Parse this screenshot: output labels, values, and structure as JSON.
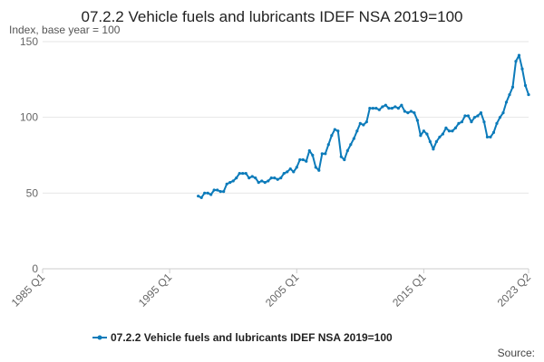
{
  "chart_data": {
    "type": "line",
    "title": "07.2.2 Vehicle fuels and lubricants IDEF NSA 2019=100",
    "subtitle": "Index, base year = 100",
    "ylim": [
      0,
      150
    ],
    "y_ticks": [
      0,
      50,
      100,
      150
    ],
    "x_range": [
      1985.0,
      2023.25
    ],
    "x_tick_labels": [
      "1985 Q1",
      "1995 Q1",
      "2005 Q1",
      "2015 Q1",
      "2023 Q2"
    ],
    "x_tick_values": [
      1985.0,
      1995.0,
      2005.0,
      2015.0,
      2023.25
    ],
    "legend": "top-bottom-center",
    "source_label": "Source:",
    "colors": {
      "series": "#0c7bba",
      "grid": "#e6e6e6",
      "axis": "#cccccc"
    },
    "series": [
      {
        "name": "07.2.2 Vehicle fuels and lubricants IDEF NSA 2019=100",
        "points": [
          [
            1997.25,
            48
          ],
          [
            1997.5,
            47
          ],
          [
            1997.75,
            50
          ],
          [
            1998.0,
            50
          ],
          [
            1998.25,
            49
          ],
          [
            1998.5,
            52
          ],
          [
            1998.75,
            52
          ],
          [
            1999.0,
            51
          ],
          [
            1999.25,
            51
          ],
          [
            1999.5,
            56
          ],
          [
            1999.75,
            57
          ],
          [
            2000.0,
            58
          ],
          [
            2000.25,
            60
          ],
          [
            2000.5,
            63
          ],
          [
            2000.75,
            63
          ],
          [
            2001.0,
            63
          ],
          [
            2001.25,
            60
          ],
          [
            2001.5,
            61
          ],
          [
            2001.75,
            60
          ],
          [
            2002.0,
            57
          ],
          [
            2002.25,
            58
          ],
          [
            2002.5,
            57
          ],
          [
            2002.75,
            58
          ],
          [
            2003.0,
            60
          ],
          [
            2003.25,
            60
          ],
          [
            2003.5,
            59
          ],
          [
            2003.75,
            60
          ],
          [
            2004.0,
            63
          ],
          [
            2004.25,
            64
          ],
          [
            2004.5,
            66
          ],
          [
            2004.75,
            64
          ],
          [
            2005.0,
            67
          ],
          [
            2005.25,
            72
          ],
          [
            2005.5,
            72
          ],
          [
            2005.75,
            71
          ],
          [
            2006.0,
            78
          ],
          [
            2006.25,
            75
          ],
          [
            2006.5,
            67
          ],
          [
            2006.75,
            65
          ],
          [
            2007.0,
            76
          ],
          [
            2007.25,
            76
          ],
          [
            2007.5,
            82
          ],
          [
            2007.75,
            88
          ],
          [
            2008.0,
            92
          ],
          [
            2008.25,
            91
          ],
          [
            2008.5,
            74
          ],
          [
            2008.75,
            72
          ],
          [
            2009.0,
            78
          ],
          [
            2009.25,
            82
          ],
          [
            2009.5,
            86
          ],
          [
            2009.75,
            91
          ],
          [
            2010.0,
            96
          ],
          [
            2010.25,
            95
          ],
          [
            2010.5,
            97
          ],
          [
            2010.75,
            106
          ],
          [
            2011.0,
            106
          ],
          [
            2011.25,
            106
          ],
          [
            2011.5,
            105
          ],
          [
            2011.75,
            107
          ],
          [
            2012.0,
            108
          ],
          [
            2012.25,
            106
          ],
          [
            2012.5,
            106
          ],
          [
            2012.75,
            107
          ],
          [
            2013.0,
            106
          ],
          [
            2013.25,
            108
          ],
          [
            2013.5,
            104
          ],
          [
            2013.75,
            103
          ],
          [
            2014.0,
            104
          ],
          [
            2014.25,
            103
          ],
          [
            2014.5,
            98
          ],
          [
            2014.75,
            88
          ],
          [
            2015.0,
            91
          ],
          [
            2015.25,
            89
          ],
          [
            2015.5,
            84
          ],
          [
            2015.75,
            79
          ],
          [
            2016.0,
            84
          ],
          [
            2016.25,
            87
          ],
          [
            2016.5,
            89
          ],
          [
            2016.75,
            93
          ],
          [
            2017.0,
            91
          ],
          [
            2017.25,
            91
          ],
          [
            2017.5,
            93
          ],
          [
            2017.75,
            96
          ],
          [
            2018.0,
            97
          ],
          [
            2018.25,
            101
          ],
          [
            2018.5,
            101
          ],
          [
            2018.75,
            97
          ],
          [
            2019.0,
            100
          ],
          [
            2019.25,
            101
          ],
          [
            2019.5,
            103
          ],
          [
            2019.75,
            97
          ],
          [
            2020.0,
            87
          ],
          [
            2020.25,
            87
          ],
          [
            2020.5,
            90
          ],
          [
            2020.75,
            96
          ],
          [
            2021.0,
            100
          ],
          [
            2021.25,
            103
          ],
          [
            2021.5,
            110
          ],
          [
            2021.75,
            115
          ],
          [
            2022.0,
            120
          ],
          [
            2022.25,
            137
          ],
          [
            2022.5,
            141
          ],
          [
            2022.75,
            132
          ],
          [
            2023.0,
            121
          ],
          [
            2023.25,
            115
          ]
        ]
      }
    ]
  }
}
